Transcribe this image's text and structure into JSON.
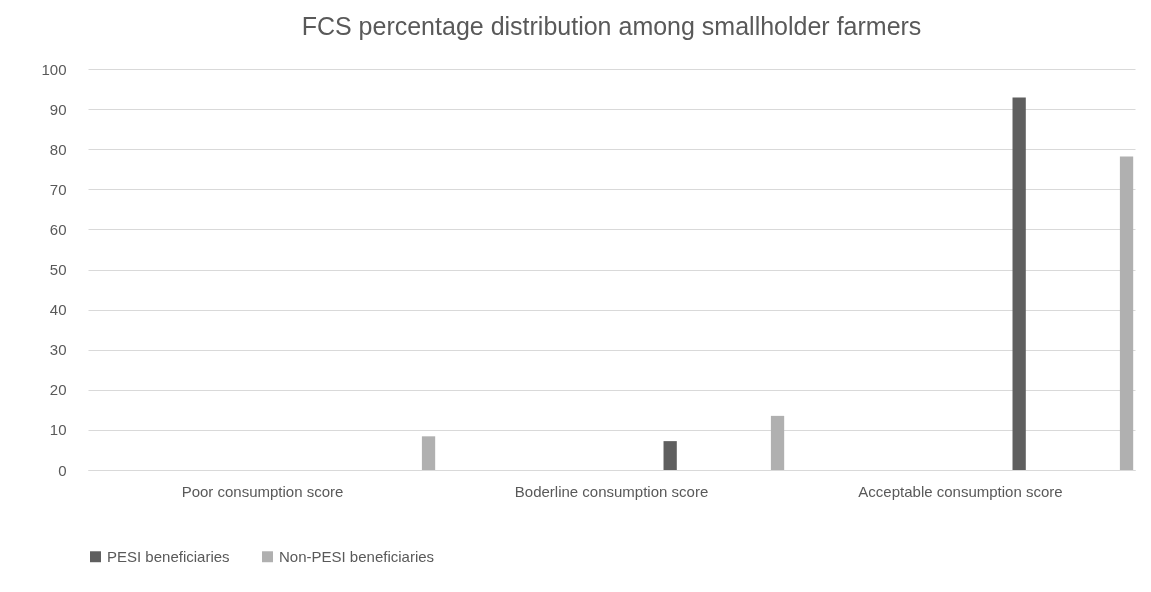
{
  "chart_data": {
    "type": "bar",
    "title": "FCS percentage distribution among smallholder farmers",
    "categories": [
      "Poor consumption score",
      "Boderline consumption score",
      "Acceptable consumption score"
    ],
    "series": [
      {
        "name": "PESI beneficiaries",
        "color": "#5f5f5f",
        "values": [
          0,
          7.2,
          92.9
        ]
      },
      {
        "name": "Non-PESI beneficiaries",
        "color": "#b0b0b0",
        "values": [
          8.4,
          13.5,
          78.2
        ]
      }
    ],
    "ylim": [
      0,
      100
    ],
    "yticks": [
      0,
      10,
      20,
      30,
      40,
      50,
      60,
      70,
      80,
      90,
      100
    ],
    "grid": "y",
    "legend": "bottom"
  }
}
